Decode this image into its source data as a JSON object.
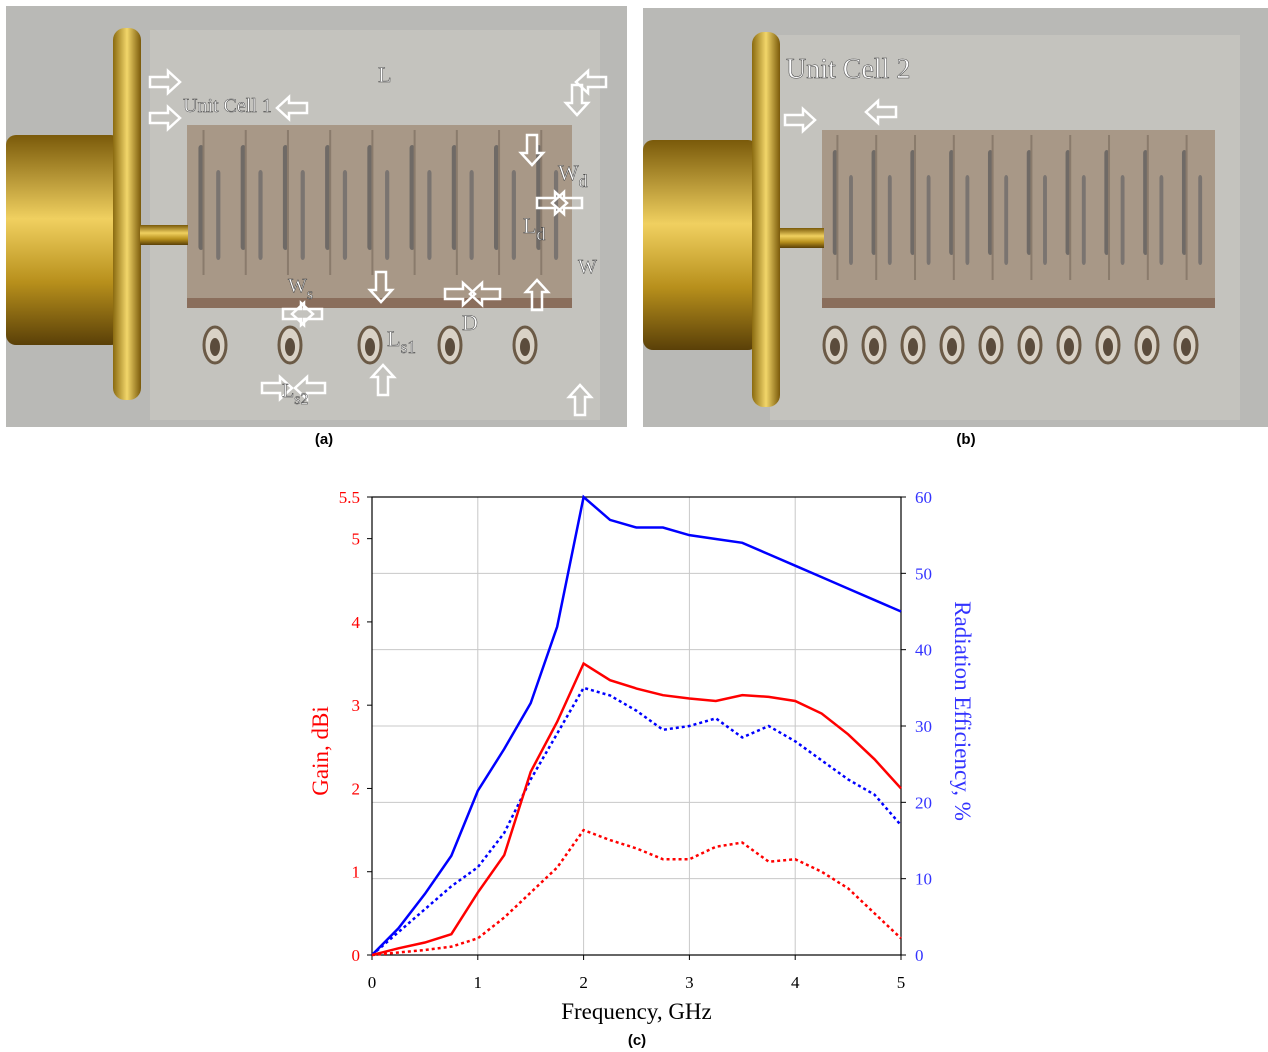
{
  "panel_a": {
    "caption": "(a)",
    "labels": [
      {
        "text": "L"
      },
      {
        "text": "Unit Cell 1"
      },
      {
        "text": "W",
        "sub": "d"
      },
      {
        "text": "L",
        "sub": "d"
      },
      {
        "text": "W"
      },
      {
        "text": "W",
        "sub": "s"
      },
      {
        "text": "L",
        "sub": "s1"
      },
      {
        "text": "D"
      },
      {
        "text": "L",
        "sub": "s2"
      }
    ]
  },
  "panel_b": {
    "caption": "(b)",
    "label": "Unit Cell 2"
  },
  "chart_data": {
    "type": "line",
    "caption": "(c)",
    "x_label": "Frequency, GHz",
    "y_label": "Gain, dBi",
    "y2_label": "Radiation Efficiency, %",
    "y_color": "#ff0000",
    "y2_color": "#3333ff",
    "x": [
      0,
      0.25,
      0.5,
      0.75,
      1,
      1.25,
      1.5,
      1.75,
      2,
      2.25,
      2.5,
      2.75,
      3,
      3.25,
      3.5,
      3.75,
      4,
      4.25,
      4.5,
      4.75,
      5
    ],
    "series": [
      {
        "color": "#0000ff",
        "line_style": "solid",
        "axis": "y2",
        "values": [
          0,
          3.5,
          8,
          13,
          21.5,
          27,
          33,
          43,
          60,
          57,
          56,
          56,
          55,
          54.5,
          54,
          52.5,
          51,
          49.5,
          48,
          46.5,
          45
        ]
      },
      {
        "color": "#0000ff",
        "line_style": "dotted",
        "axis": "y2",
        "values": [
          0,
          3,
          6,
          9,
          11.5,
          16,
          23,
          29,
          35,
          34,
          32,
          29.5,
          30,
          31,
          28.5,
          30,
          28,
          25.5,
          23,
          21,
          17
        ]
      },
      {
        "color": "#ff0000",
        "line_style": "solid",
        "values": [
          0,
          0.08,
          0.15,
          0.25,
          0.75,
          1.2,
          2.2,
          2.8,
          3.5,
          3.3,
          3.2,
          3.12,
          3.08,
          3.05,
          3.12,
          3.1,
          3.05,
          2.9,
          2.65,
          2.35,
          2.0
        ]
      },
      {
        "color": "#ff0000",
        "line_style": "dotted",
        "values": [
          0,
          0.03,
          0.06,
          0.1,
          0.2,
          0.45,
          0.75,
          1.05,
          1.5,
          1.38,
          1.28,
          1.15,
          1.15,
          1.3,
          1.35,
          1.12,
          1.15,
          1.0,
          0.8,
          0.5,
          0.2
        ]
      }
    ],
    "xlim": [
      0,
      5
    ],
    "xticks": [
      0,
      1,
      2,
      3,
      4,
      5
    ],
    "ylim": [
      0,
      5.5
    ],
    "yticks": [
      0,
      1,
      2,
      3,
      4,
      5,
      5.5
    ],
    "y2lim": [
      0,
      60
    ],
    "y2ticks": [
      0,
      10,
      20,
      30,
      40,
      50,
      60
    ],
    "grid": true
  }
}
